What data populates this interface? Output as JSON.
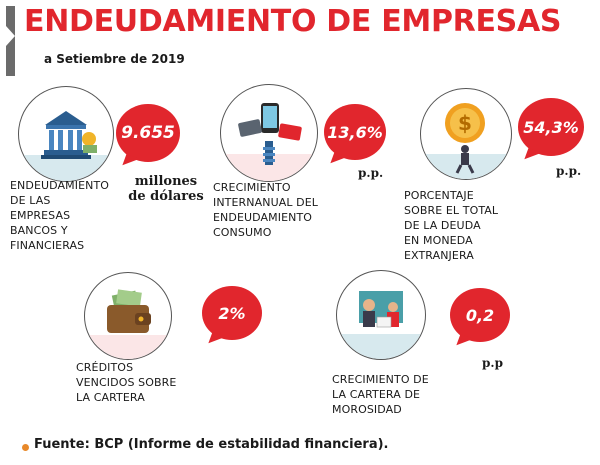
{
  "header": {
    "title": "ENDEUDAMIENTO DE EMPRESAS",
    "subtitle": "a Setiembre de 2019"
  },
  "stats": {
    "banks": {
      "value": "9.655",
      "unit": "millones\nde dólares",
      "label": "ENDEUDAMIENTO\nDE LAS\nEMPRESAS\nBANCOS Y\nFINANCIERAS",
      "icon": "bank-icon"
    },
    "consumo": {
      "value": "13,6%",
      "unit": "p.p.",
      "label": "CRECIMIENTO\nINTERNANUAL DEL\nENDEUDAMIENTO\nCONSUMO",
      "icon": "cards-phone-icon"
    },
    "foreign": {
      "value": "54,3%",
      "unit": "p.p.",
      "label": "PORCENTAJE\nSOBRE EL TOTAL\nDE LA DEUDA\nEN MONEDA\nEXTRANJERA",
      "icon": "debt-weight-icon"
    },
    "overdue": {
      "value": "2%",
      "label": "CRÉDITOS\nVENCIDOS SOBRE\nLA CARTERA",
      "icon": "wallet-icon"
    },
    "delinquency": {
      "value": "0,2",
      "unit": "p.p",
      "label": "CRECIMIENTO DE\nLA CARTERA DE\nMOROSIDAD",
      "icon": "collector-icon"
    }
  },
  "footer": {
    "source": "Fuente: BCP (Informe de estabilidad financiera)."
  },
  "colors": {
    "accent": "#e1262d",
    "header_bar": "#6b6b6b",
    "footer_dot": "#e8892a"
  }
}
